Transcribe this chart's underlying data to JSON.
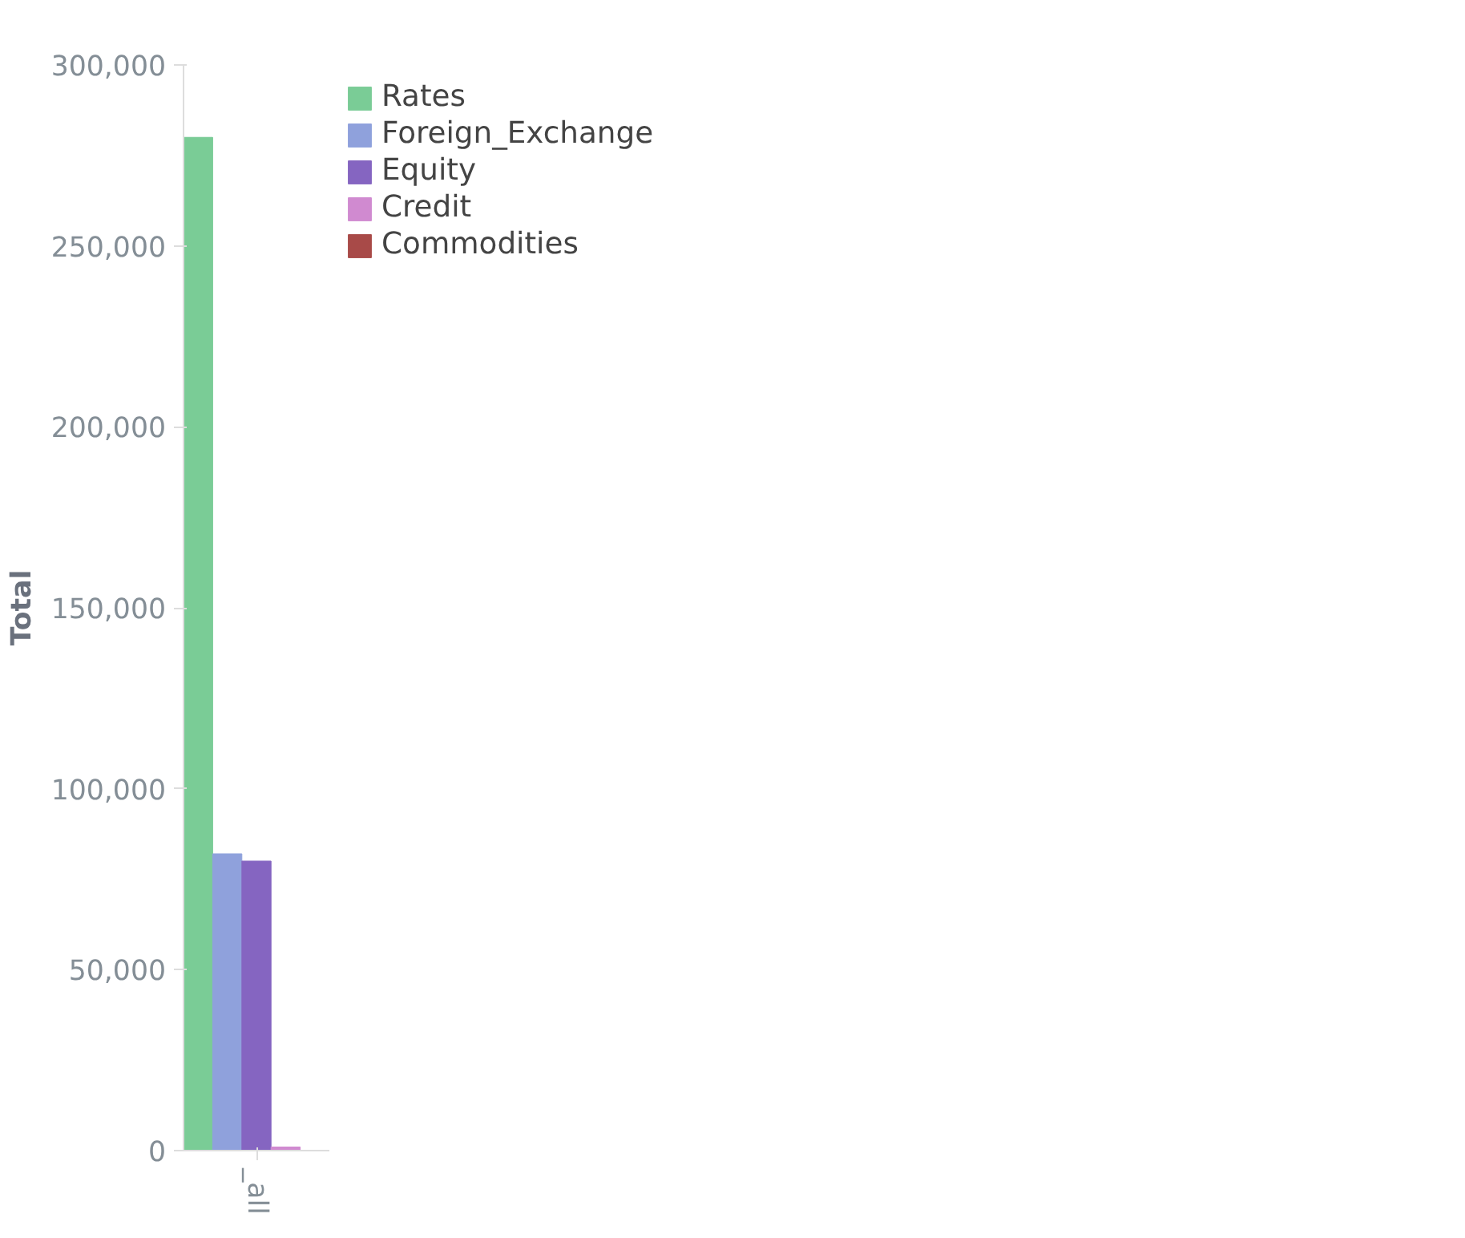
{
  "chart_data": {
    "type": "bar",
    "ylabel": "Total",
    "categories": [
      "_all"
    ],
    "series": [
      {
        "name": "Rates",
        "color": "#7acc96",
        "values": [
          280000
        ]
      },
      {
        "name": "Foreign_Exchange",
        "color": "#8fa1dc",
        "values": [
          82000
        ]
      },
      {
        "name": "Equity",
        "color": "#8565c1",
        "values": [
          80000
        ]
      },
      {
        "name": "Credit",
        "color": "#d08ad0",
        "values": [
          1000
        ]
      },
      {
        "name": "Commodities",
        "color": "#a84a48",
        "values": [
          0
        ]
      }
    ],
    "ylim": [
      0,
      300000
    ],
    "yticks": [
      0,
      {
        "value": 50000,
        "label": "50,000"
      },
      {
        "value": 100000,
        "label": "100,000"
      },
      {
        "value": 150000,
        "label": "150,000"
      },
      {
        "value": 200000,
        "label": "200,000"
      },
      {
        "value": 250000,
        "label": "250,000"
      },
      {
        "value": 300000,
        "label": "300,000"
      }
    ],
    "grid": false,
    "legend": "top right"
  }
}
